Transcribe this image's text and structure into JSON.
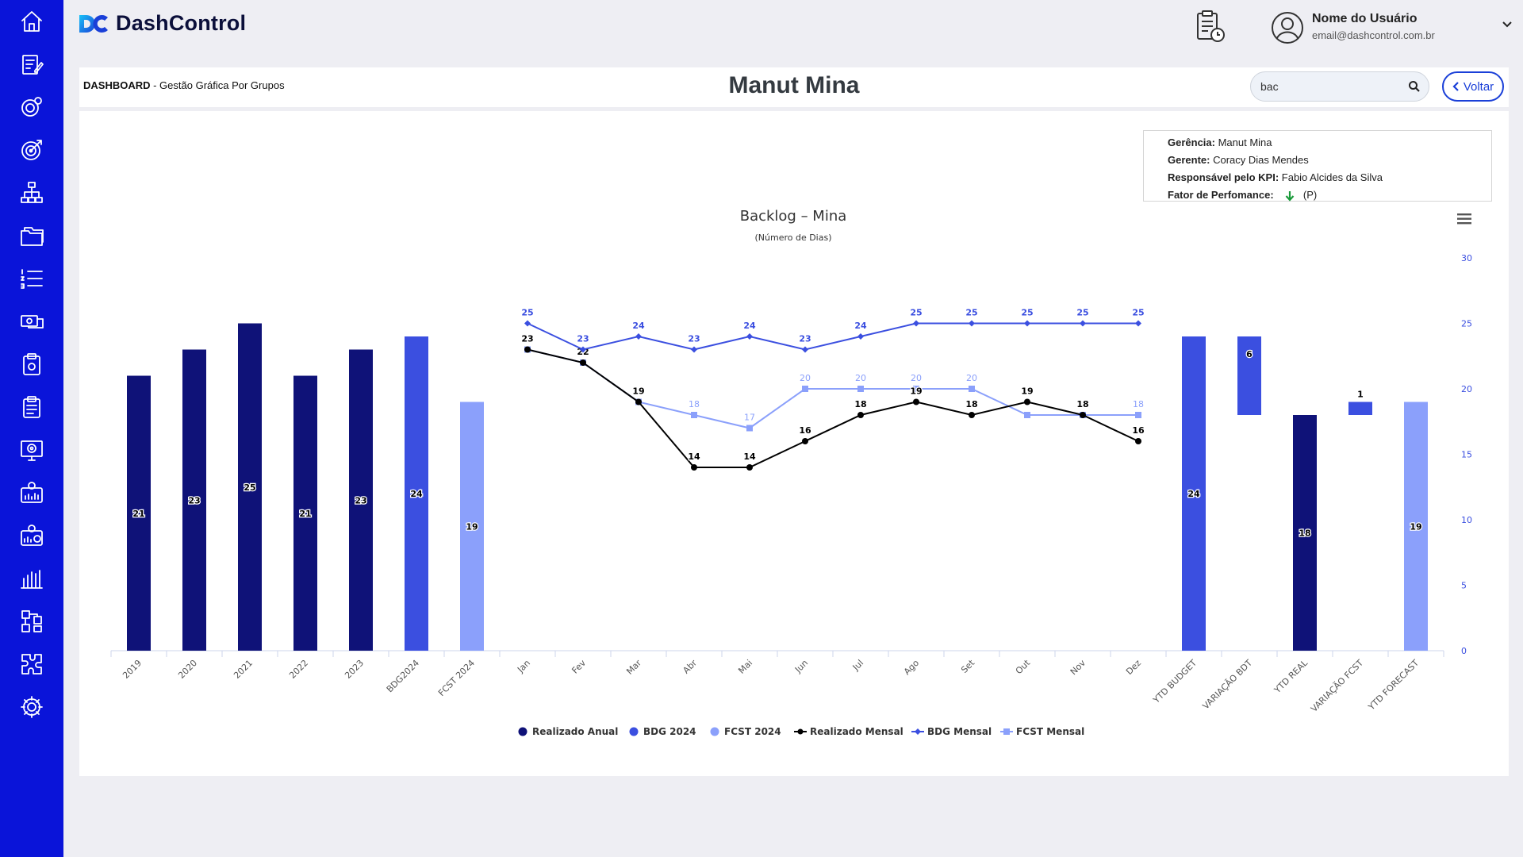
{
  "sidebar": {
    "items": [
      {
        "icon": "home-icon"
      },
      {
        "icon": "edit-document-icon"
      },
      {
        "icon": "target-settings-icon"
      },
      {
        "icon": "target-icon"
      },
      {
        "icon": "org-chart-icon"
      },
      {
        "icon": "folders-icon"
      },
      {
        "icon": "numbered-list-icon"
      },
      {
        "icon": "money-icon"
      },
      {
        "icon": "clipboard-settings-icon"
      },
      {
        "icon": "clipboard-list-icon"
      },
      {
        "icon": "presentation-target-icon"
      },
      {
        "icon": "dashboard-chart-icon"
      },
      {
        "icon": "dashboard-pie-icon"
      },
      {
        "icon": "bar-chart-icon"
      },
      {
        "icon": "flowchart-icon"
      },
      {
        "icon": "puzzle-icon"
      },
      {
        "icon": "settings-gear-icon"
      }
    ],
    "color": "#0a14d9"
  },
  "header": {
    "logo_text": "DashControl",
    "user_name": "Nome do Usuário",
    "user_email": "email@dashcontrol.com.br"
  },
  "title_bar": {
    "breadcrumb_strong": "DASHBOARD",
    "breadcrumb_rest": " - Gestão Gráfica Por Grupos",
    "page_title": "Manut Mina",
    "search_value": "bac",
    "back_label": "Voltar"
  },
  "info": {
    "gerencia_label": "Gerência:",
    "gerencia_value": " Manut Mina",
    "gerente_label": "Gerente:",
    "gerente_value": " Coracy Dias Mendes",
    "responsavel_label": "Responsável pelo KPI:",
    "responsavel_value": " Fabio Alcides da Silva",
    "fator_label": "Fator de Perfomance:",
    "fator_value": "(P)"
  },
  "chart_data": {
    "type": "bar",
    "title": "Backlog – Mina",
    "subtitle": "(Número de Dias)",
    "categories": [
      "2019",
      "2020",
      "2021",
      "2022",
      "2023",
      "BDG2024",
      "FCST 2024",
      "Jan",
      "Fev",
      "Mar",
      "Abr",
      "Mai",
      "Jun",
      "Jul",
      "Ago",
      "Set",
      "Out",
      "Nov",
      "Dez",
      "YTD BUDGET",
      "VARIAÇÃO BDT",
      "YTD REAL",
      "VARIAÇÃO FCST",
      "YTD FORECAST"
    ],
    "ylim": [
      0,
      30
    ],
    "yticks": [
      0,
      5,
      10,
      15,
      20,
      25,
      30
    ],
    "colors": {
      "realizado_anual": "#0f1278",
      "bdg": "#3b4fe0",
      "fcst": "#8ba0fb",
      "realizado_mensal": "#000000"
    },
    "bars": [
      {
        "series": "Realizado Anual",
        "category": "2019",
        "value": 21,
        "label": "21"
      },
      {
        "series": "Realizado Anual",
        "category": "2020",
        "value": 23,
        "label": "23"
      },
      {
        "series": "Realizado Anual",
        "category": "2021",
        "value": 25,
        "label": "25"
      },
      {
        "series": "Realizado Anual",
        "category": "2022",
        "value": 21,
        "label": "21"
      },
      {
        "series": "Realizado Anual",
        "category": "2023",
        "value": 23,
        "label": "23"
      },
      {
        "series": "BDG 2024",
        "category": "BDG2024",
        "value": 24,
        "label": "24"
      },
      {
        "series": "FCST 2024",
        "category": "FCST 2024",
        "value": 19,
        "label": "19"
      },
      {
        "series": "BDG 2024",
        "category": "YTD BUDGET",
        "value": 24,
        "label": "24"
      },
      {
        "series": "BDG 2024",
        "category": "VARIAÇÃO BDT",
        "low": 18,
        "high": 24,
        "label": "6",
        "label_pos": "inside-top"
      },
      {
        "series": "Realizado Anual",
        "category": "YTD REAL",
        "value": 18,
        "label": "18"
      },
      {
        "series": "BDG 2024",
        "category": "VARIAÇÃO FCST",
        "low": 18,
        "high": 19,
        "label": "1",
        "label_pos": "above"
      },
      {
        "series": "FCST 2024",
        "category": "YTD FORECAST",
        "value": 19,
        "label": "19"
      }
    ],
    "series": [
      {
        "name": "Realizado Mensal",
        "x": [
          "Jan",
          "Fev",
          "Mar",
          "Abr",
          "Mai",
          "Jun",
          "Jul",
          "Ago",
          "Set",
          "Out",
          "Nov",
          "Dez"
        ],
        "values": [
          23,
          22,
          19,
          14,
          14,
          16,
          18,
          19,
          18,
          19,
          18,
          16
        ]
      },
      {
        "name": "BDG Mensal",
        "x": [
          "Jan",
          "Fev",
          "Mar",
          "Abr",
          "Mai",
          "Jun",
          "Jul",
          "Ago",
          "Set",
          "Out",
          "Nov",
          "Dez"
        ],
        "values": [
          25,
          23,
          24,
          23,
          24,
          23,
          24,
          25,
          25,
          25,
          25,
          25
        ]
      },
      {
        "name": "FCST Mensal",
        "x": [
          "Jan",
          "Fev",
          "Mar",
          "Abr",
          "Mai",
          "Jun",
          "Jul",
          "Ago",
          "Set",
          "Out",
          "Nov",
          "Dez"
        ],
        "values": [
          23,
          22,
          19,
          18,
          17,
          20,
          20,
          20,
          20,
          18,
          18,
          18
        ]
      }
    ],
    "line_labels": {
      "Realizado Mensal": [
        "23",
        "22",
        "19",
        "14",
        "14",
        "16",
        "18",
        "19",
        "18",
        "19",
        "18",
        "16"
      ],
      "BDG Mensal": [
        "25",
        "23",
        "24",
        "23",
        "24",
        "23",
        "24",
        "25",
        "25",
        "25",
        "25",
        "25"
      ],
      "FCST Mensal": [
        "",
        "",
        "",
        "18",
        "17",
        "20",
        "20",
        "20",
        "20",
        "",
        "",
        "18"
      ]
    },
    "legend": [
      {
        "name": "Realizado Anual",
        "marker": "circle",
        "color": "#0f1278"
      },
      {
        "name": "BDG 2024",
        "marker": "circle",
        "color": "#3b4fe0"
      },
      {
        "name": "FCST 2024",
        "marker": "circle",
        "color": "#8ba0fb"
      },
      {
        "name": "Realizado Mensal",
        "marker": "line-circle",
        "color": "#000000"
      },
      {
        "name": "BDG Mensal",
        "marker": "line-diamond",
        "color": "#3b4fe0"
      },
      {
        "name": "FCST Mensal",
        "marker": "line-square",
        "color": "#8ba0fb"
      }
    ],
    "legend_position": "bottom-center",
    "grid": false,
    "y_axis_side": "right"
  }
}
